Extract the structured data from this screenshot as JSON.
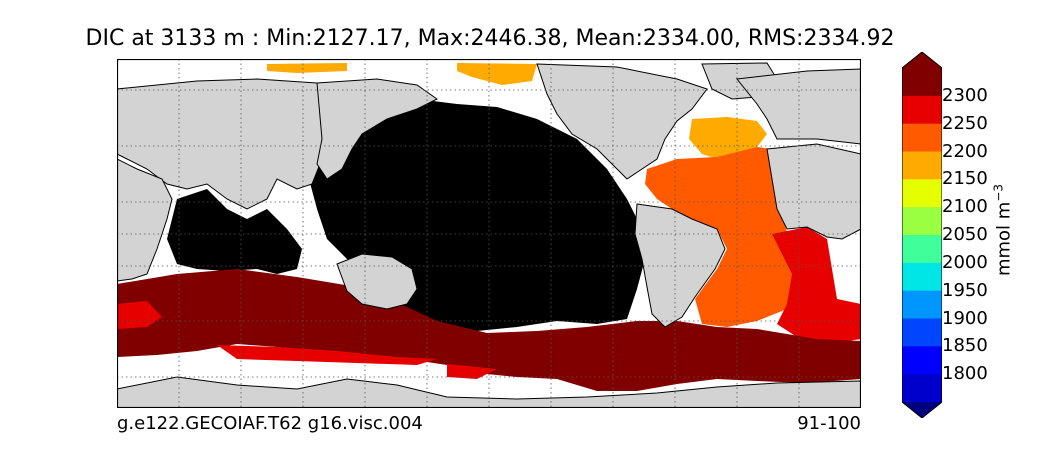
{
  "title": "DIC at 3133 m : Min:2127.17, Max:2446.38, Mean:2334.00, RMS:2334.92",
  "footer": {
    "case": "g.e122.GECOIAF.T62 g16.visc.004",
    "years": "91-100"
  },
  "colorbar": {
    "unit": "mmol m",
    "unit_exp": "−3",
    "extend": "both",
    "levels": [
      {
        "label": "1800",
        "color": "#0000cd"
      },
      {
        "label": "1850",
        "color": "#0000ff"
      },
      {
        "label": "1900",
        "color": "#0046ff"
      },
      {
        "label": "1950",
        "color": "#0096ff"
      },
      {
        "label": "2000",
        "color": "#00e6e6"
      },
      {
        "label": "2050",
        "color": "#40ff9a"
      },
      {
        "label": "2100",
        "color": "#9aff40"
      },
      {
        "label": "2150",
        "color": "#e6ff00"
      },
      {
        "label": "2200",
        "color": "#ffaa00"
      },
      {
        "label": "2250",
        "color": "#ff5a00"
      },
      {
        "label": "2300",
        "color": "#e60000"
      }
    ],
    "low_color": "#000080",
    "high_color": "#800000"
  },
  "map_colors": {
    "land": "#d3d3d3",
    "no_data": "#ffffff",
    "below_range": "#000000",
    "orange": "#ffaa00",
    "red_orange": "#ff5a00",
    "red": "#e60000",
    "dark_red": "#800000"
  }
}
